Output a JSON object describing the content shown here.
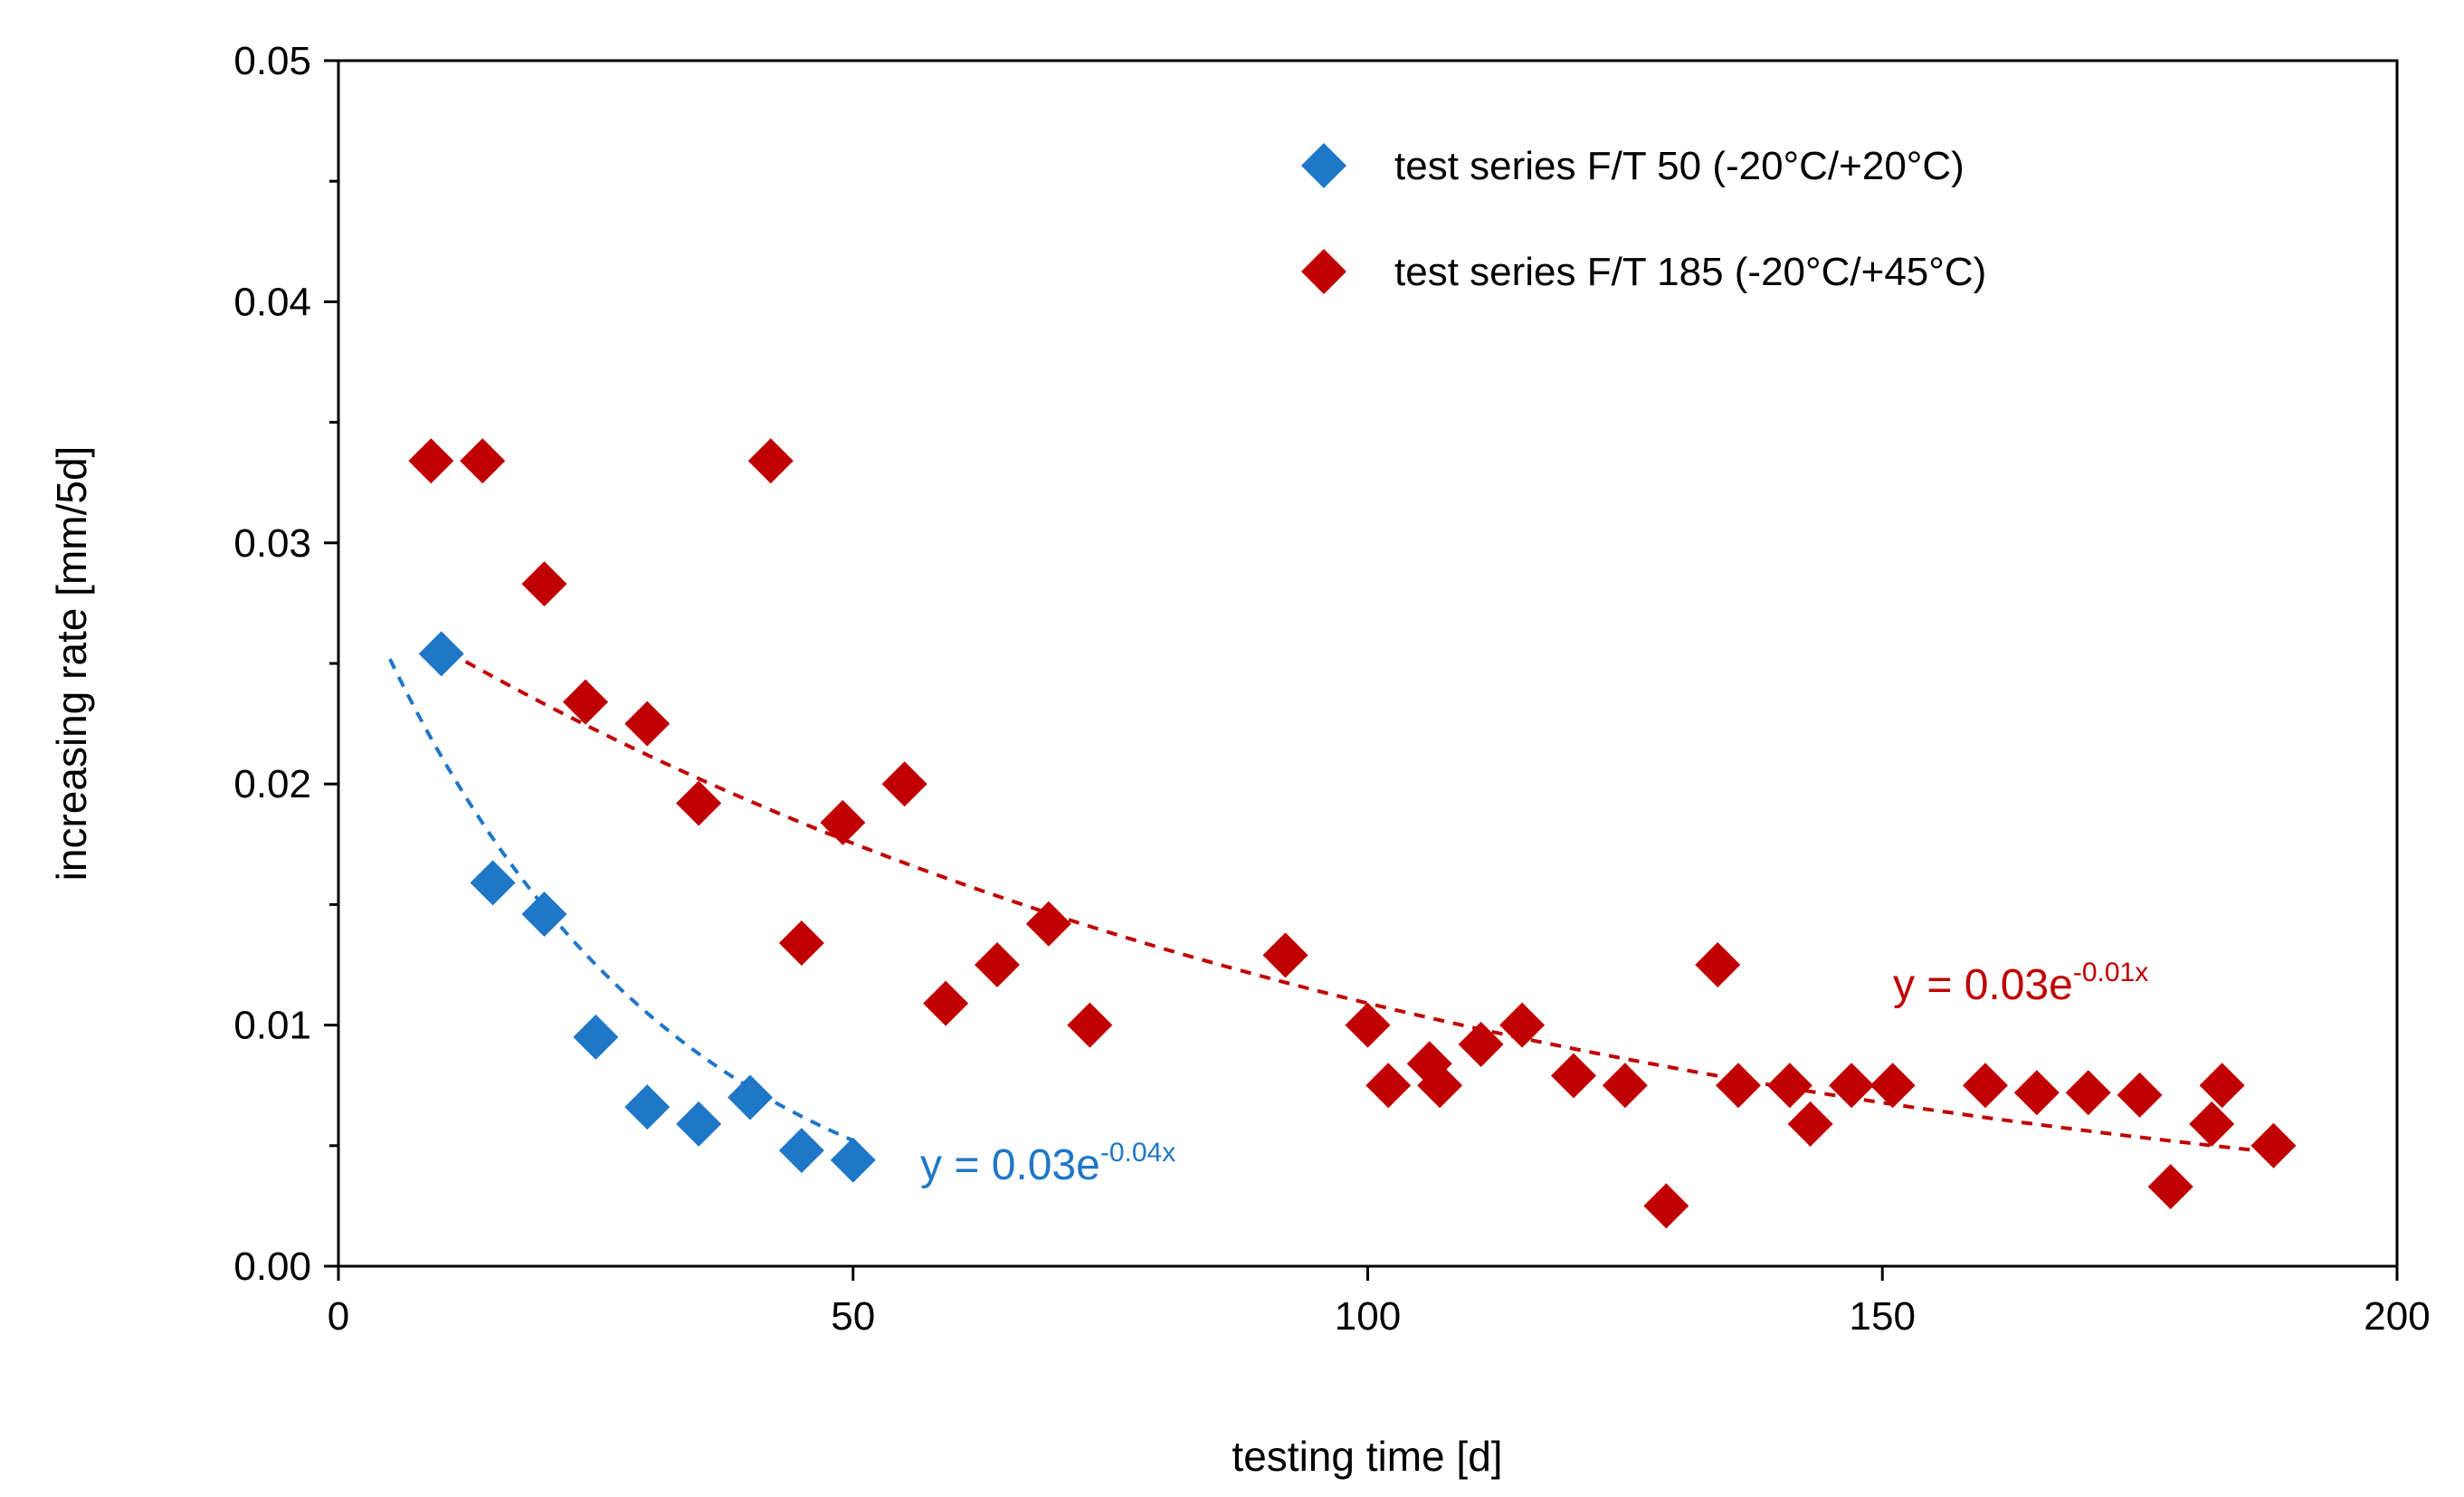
{
  "chart_data": {
    "type": "scatter",
    "xlabel": "testing time [d]",
    "ylabel": "increasing rate [mm/5d]",
    "xlim": [
      0,
      200
    ],
    "ylim": [
      0,
      0.05
    ],
    "xticks": [
      0,
      50,
      100,
      150,
      200
    ],
    "xtick_labels": [
      "0",
      "50",
      "100",
      "150",
      "200"
    ],
    "yticks": [
      0,
      0.01,
      0.02,
      0.03,
      0.04,
      0.05
    ],
    "ytick_labels": [
      "0.00",
      "0.01",
      "0.02",
      "0.03",
      "0.04",
      "0.05"
    ],
    "y_minor_step": 0.005,
    "grid": false,
    "legend_position": "top-right",
    "series": [
      {
        "name": "test series F/T 50 (-20°C/+20°C)",
        "color": "#1f77c8",
        "marker": "diamond",
        "points": [
          [
            10,
            0.0254
          ],
          [
            15,
            0.0159
          ],
          [
            20,
            0.0146
          ],
          [
            25,
            0.0095
          ],
          [
            30,
            0.0066
          ],
          [
            35,
            0.0059
          ],
          [
            40,
            0.007
          ],
          [
            45,
            0.0048
          ],
          [
            50,
            0.0044
          ]
        ],
        "trendline": {
          "type": "exponential",
          "equation_prefix": "y = 0.03e",
          "equation_exponent": "-0.04x",
          "a": 0.03,
          "b": -0.035,
          "x_range": [
            5,
            50
          ]
        }
      },
      {
        "name": "test series F/T 185 (-20°C/+45°C)",
        "color": "#c00000",
        "marker": "diamond",
        "points": [
          [
            9,
            0.0334
          ],
          [
            14,
            0.0334
          ],
          [
            20,
            0.0283
          ],
          [
            24,
            0.0234
          ],
          [
            30,
            0.0225
          ],
          [
            35,
            0.0192
          ],
          [
            42,
            0.0334
          ],
          [
            45,
            0.0134
          ],
          [
            49,
            0.0184
          ],
          [
            55,
            0.02
          ],
          [
            59,
            0.0109
          ],
          [
            64,
            0.0125
          ],
          [
            69,
            0.0142
          ],
          [
            73,
            0.01
          ],
          [
            92,
            0.0129
          ],
          [
            100,
            0.01
          ],
          [
            102,
            0.0075
          ],
          [
            106,
            0.0084
          ],
          [
            107,
            0.0075
          ],
          [
            111,
            0.0092
          ],
          [
            115,
            0.01
          ],
          [
            120,
            0.0079
          ],
          [
            125,
            0.0075
          ],
          [
            129,
            0.0025
          ],
          [
            134,
            0.0125
          ],
          [
            136,
            0.0075
          ],
          [
            141,
            0.0075
          ],
          [
            143,
            0.0059
          ],
          [
            147,
            0.0075
          ],
          [
            151,
            0.0075
          ],
          [
            160,
            0.0075
          ],
          [
            165,
            0.0072
          ],
          [
            170,
            0.0072
          ],
          [
            175,
            0.0071
          ],
          [
            178,
            0.0033
          ],
          [
            182,
            0.0059
          ],
          [
            183,
            0.0075
          ],
          [
            188,
            0.005
          ]
        ],
        "trendline": {
          "type": "exponential",
          "equation_prefix": "y = 0.03e",
          "equation_exponent": "-0.01x",
          "a": 0.0282,
          "b": -0.0095,
          "x_range": [
            9,
            188
          ]
        }
      }
    ]
  }
}
